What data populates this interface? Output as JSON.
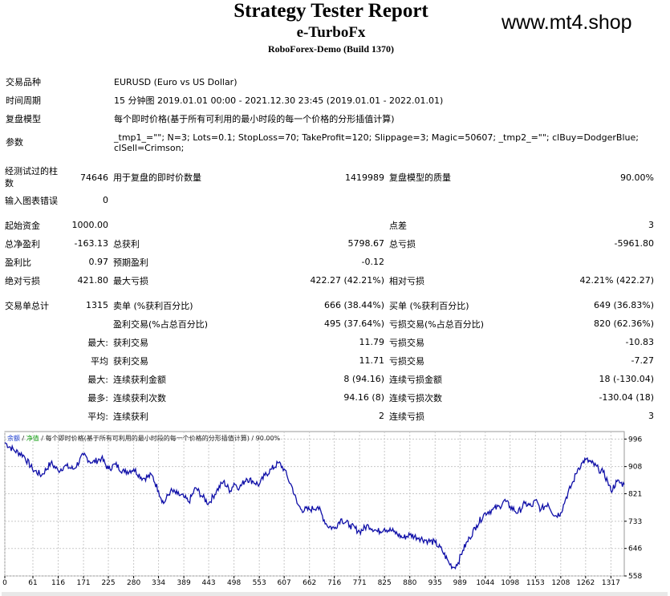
{
  "header": {
    "title": "Strategy Tester Report",
    "expert": "e-TurboFx",
    "server": "RoboForex-Demo (Build 1370)",
    "watermark": "www.mt4.shop"
  },
  "info": [
    {
      "label": "交易品种",
      "value": "EURUSD (Euro vs US Dollar)"
    },
    {
      "label": "时间周期",
      "value": "15 分钟图 2019.01.01 00:00 - 2021.12.30 23:45 (2019.01.01 - 2022.01.01)"
    },
    {
      "label": "复盘模型",
      "value": "每个即时价格(基于所有可利用的最小时段的每一个价格的分形插值计算)"
    },
    {
      "label": "参数",
      "value": "_tmp1_=\"\"; N=3; Lots=0.1; StopLoss=70; TakeProfit=120; Slippage=3; Magic=50607; _tmp2_=\"\"; clBuy=DodgerBlue; clSell=Crimson;"
    }
  ],
  "stats": {
    "bars_label": "经测试过的柱数",
    "bars_value": "74646",
    "ticks_label": "用于复盘的即时价数量",
    "ticks_value": "1419989",
    "quality_label": "复盘模型的质量",
    "quality_value": "90.00%",
    "errors_label": "输入图表错误",
    "errors_value": "0",
    "deposit_label": "起始资金",
    "deposit_value": "1000.00",
    "spread_label": "点差",
    "spread_value": "3",
    "netprofit_label": "总净盈利",
    "netprofit_value": "-163.13",
    "grossprofit_label": "总获利",
    "grossprofit_value": "5798.67",
    "grossloss_label": "总亏损",
    "grossloss_value": "-5961.80",
    "pf_label": "盈利比",
    "pf_value": "0.97",
    "payoff_label": "预期盈利",
    "payoff_value": "-0.12",
    "absdd_label": "绝对亏损",
    "absdd_value": "421.80",
    "maxdd_label": "最大亏损",
    "maxdd_value": "422.27 (42.21%)",
    "reldd_label": "相对亏损",
    "reldd_value": "42.21% (422.27)",
    "trades_label": "交易单总计",
    "trades_value": "1315",
    "short_label": "卖单 (%获利百分比)",
    "short_value": "666 (38.44%)",
    "long_label": "买单 (%获利百分比)",
    "long_value": "649 (36.83%)",
    "win_label": "盈利交易(%占总百分比)",
    "win_value": "495 (37.64%)",
    "loss_label": "亏损交易(%占总百分比)",
    "loss_value": "820 (62.36%)",
    "largest": "最大:",
    "largest_win_label": "获利交易",
    "largest_win_value": "11.79",
    "largest_loss_label": "亏损交易",
    "largest_loss_value": "-10.83",
    "average": "平均",
    "avg_win_label": "获利交易",
    "avg_win_value": "11.71",
    "avg_loss_label": "亏损交易",
    "avg_loss_value": "-7.27",
    "maximum": "最大:",
    "max_cons_wins_label": "连续获利金额",
    "max_cons_wins_value": "8 (94.16)",
    "max_cons_losses_label": "连续亏损金额",
    "max_cons_losses_value": "18 (-130.04)",
    "maximal": "最多:",
    "maximal_cons_profit_label": "连续获利次数",
    "maximal_cons_profit_value": "94.16 (8)",
    "maximal_cons_loss_label": "连续亏损次数",
    "maximal_cons_loss_value": "-130.04 (18)",
    "average2": "平均:",
    "avg_cons_wins_label": "连续获利",
    "avg_cons_wins_value": "2",
    "avg_cons_losses_label": "连续亏损",
    "avg_cons_losses_value": "3"
  },
  "chart_legend": {
    "balance": "余额",
    "equity": "净值",
    "model": "每个即时价格(基于所有可利用的最小时段的每一个价格的分形插值计算)",
    "quality": "90.00%"
  },
  "chart_data": {
    "type": "line",
    "xlabel": "",
    "ylabel": "",
    "x_ticks": [
      0,
      61,
      116,
      171,
      225,
      280,
      334,
      389,
      443,
      498,
      553,
      607,
      662,
      716,
      771,
      825,
      880,
      935,
      989,
      1044,
      1098,
      1153,
      1208,
      1262,
      1317
    ],
    "y_ticks": [
      558,
      646,
      733,
      821,
      908,
      996
    ],
    "xlim": [
      0,
      1346
    ],
    "ylim": [
      558,
      1020
    ],
    "series": [
      {
        "line_color": "#1010a8",
        "x": [
          0,
          20,
          40,
          60,
          80,
          100,
          116,
          130,
          150,
          171,
          190,
          210,
          225,
          240,
          260,
          280,
          300,
          320,
          334,
          345,
          360,
          375,
          389,
          400,
          415,
          430,
          443,
          460,
          475,
          490,
          498,
          510,
          525,
          540,
          553,
          565,
          580,
          595,
          607,
          615,
          625,
          635,
          645,
          662,
          680,
          700,
          716,
          730,
          750,
          771,
          790,
          810,
          825,
          845,
          865,
          880,
          900,
          920,
          935,
          950,
          965,
          975,
          985,
          995,
          1010,
          1025,
          1044,
          1060,
          1075,
          1085,
          1098,
          1115,
          1130,
          1145,
          1153,
          1165,
          1180,
          1195,
          1208,
          1220,
          1235,
          1245,
          1255,
          1262,
          1275,
          1290,
          1300,
          1310,
          1317,
          1330,
          1346
        ],
        "y": [
          985,
          960,
          945,
          900,
          880,
          920,
          895,
          910,
          900,
          945,
          920,
          935,
          900,
          915,
          890,
          900,
          870,
          880,
          830,
          790,
          830,
          820,
          810,
          795,
          840,
          810,
          790,
          830,
          860,
          830,
          855,
          840,
          870,
          860,
          850,
          880,
          900,
          920,
          900,
          870,
          840,
          790,
          770,
          770,
          780,
          720,
          710,
          740,
          720,
          700,
          720,
          700,
          710,
          700,
          680,
          690,
          680,
          670,
          665,
          640,
          600,
          585,
          600,
          640,
          680,
          720,
          760,
          770,
          780,
          800,
          780,
          760,
          790,
          780,
          800,
          770,
          790,
          750,
          760,
          810,
          860,
          900,
          920,
          930,
          920,
          900,
          890,
          860,
          830,
          860,
          850
        ]
      }
    ]
  }
}
